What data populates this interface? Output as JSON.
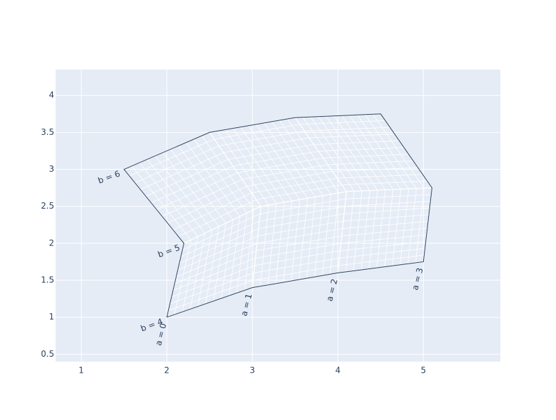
{
  "chart_data": {
    "type": "carpet",
    "title": "",
    "xlabel": "",
    "ylabel": "",
    "xlim": [
      0.7,
      5.9
    ],
    "ylim": [
      0.4,
      4.35
    ],
    "x_ticks": [
      1,
      2,
      3,
      4,
      5
    ],
    "y_ticks": [
      0.5,
      1,
      1.5,
      2,
      2.5,
      3,
      3.5,
      4
    ],
    "x_tick_labels": [
      "1",
      "2",
      "3",
      "4",
      "5"
    ],
    "y_tick_labels": [
      "0.5",
      "1",
      "1.5",
      "2",
      "2.5",
      "3",
      "3.5",
      "4"
    ],
    "grid": true,
    "a": [
      0,
      1,
      2,
      3
    ],
    "b": [
      4,
      5,
      6
    ],
    "a_labels": [
      "a = 0",
      "a = 1",
      "a = 2",
      "a = 3"
    ],
    "b_labels": [
      "b = 4",
      "b = 5",
      "b = 6"
    ],
    "x": [
      [
        2,
        3,
        4,
        5
      ],
      [
        2.2,
        3.1,
        4.1,
        5.1
      ],
      [
        1.5,
        2.5,
        3.5,
        4.5
      ]
    ],
    "y": [
      [
        1,
        1.4,
        1.6,
        1.75
      ],
      [
        2,
        2.5,
        2.7,
        2.75
      ],
      [
        3,
        3.5,
        3.7,
        3.75
      ]
    ],
    "minor_lines_per_interval": 11,
    "colors": {
      "plot_background": "#e5ecf6",
      "gridline": "#ffffff",
      "boundary": "#2a3f5f",
      "text": "#2a3f5f"
    }
  }
}
